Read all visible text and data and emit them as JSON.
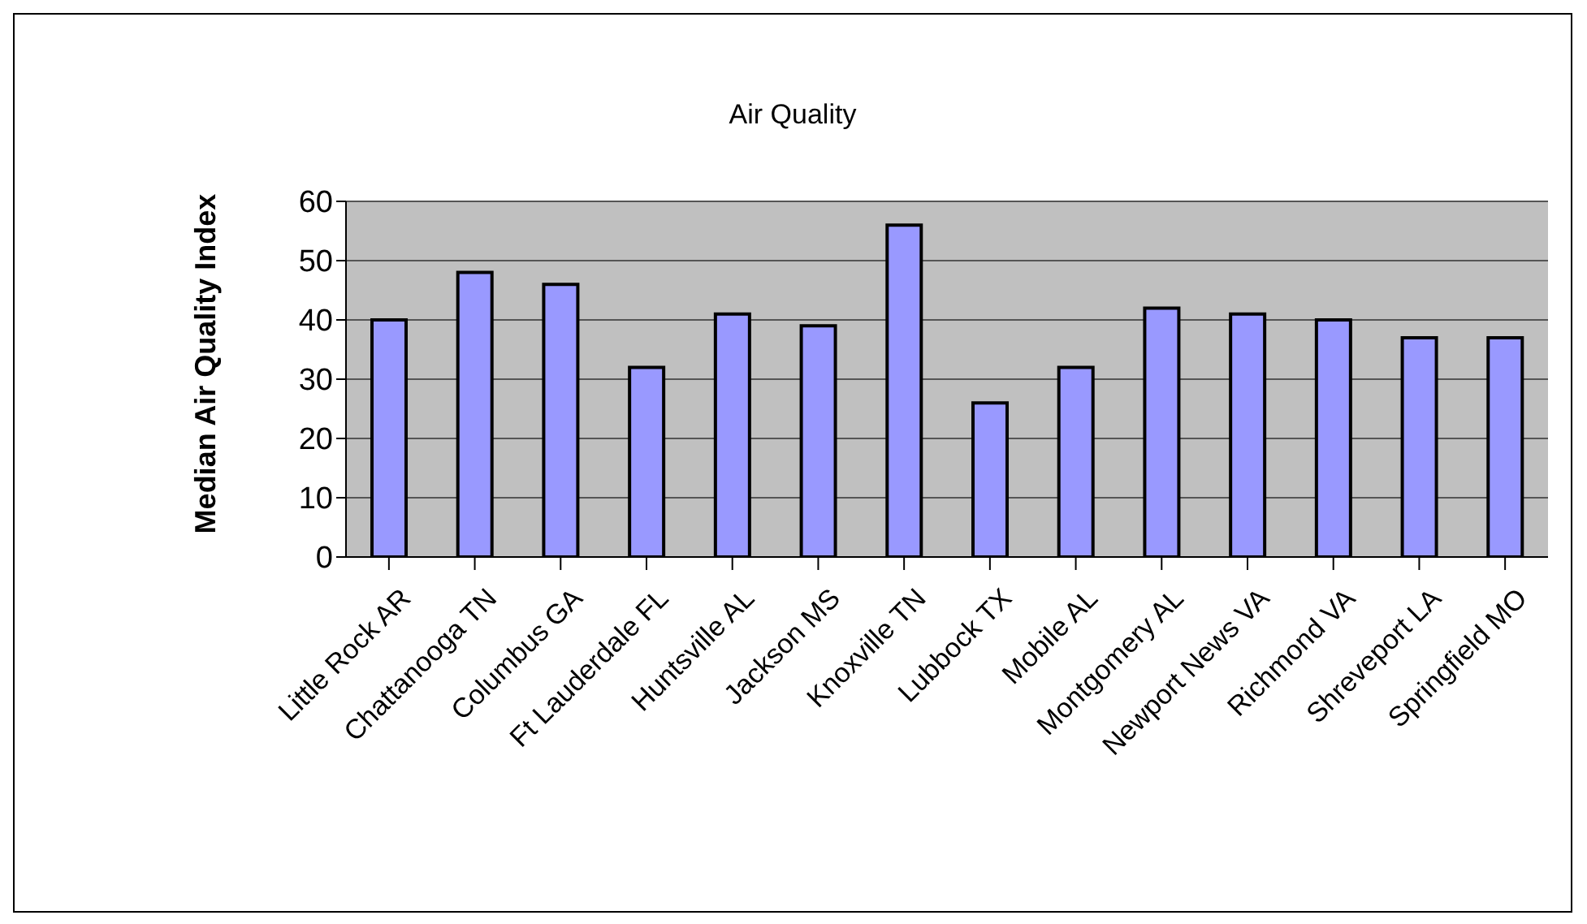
{
  "chart_data": {
    "type": "bar",
    "title": "Air Quality",
    "ylabel": "Median Air Quality Index",
    "categories": [
      "Little Rock AR",
      "Chattanooga TN",
      "Columbus GA",
      "Ft Lauderdale FL",
      "Huntsville AL",
      "Jackson MS",
      "Knoxville TN",
      "Lubbock TX",
      "Mobile AL",
      "Montgomery AL",
      "Newport News VA",
      "Richmond VA",
      "Shreveport LA",
      "Springfield MO"
    ],
    "values": [
      40,
      48,
      46,
      32,
      41,
      39,
      56,
      26,
      32,
      42,
      41,
      40,
      37,
      37
    ],
    "color": "#9999ff",
    "ylim": [
      0,
      60
    ],
    "yticks": [
      0,
      10,
      20,
      30,
      40,
      50,
      60
    ],
    "grid": "y",
    "legend": false
  }
}
